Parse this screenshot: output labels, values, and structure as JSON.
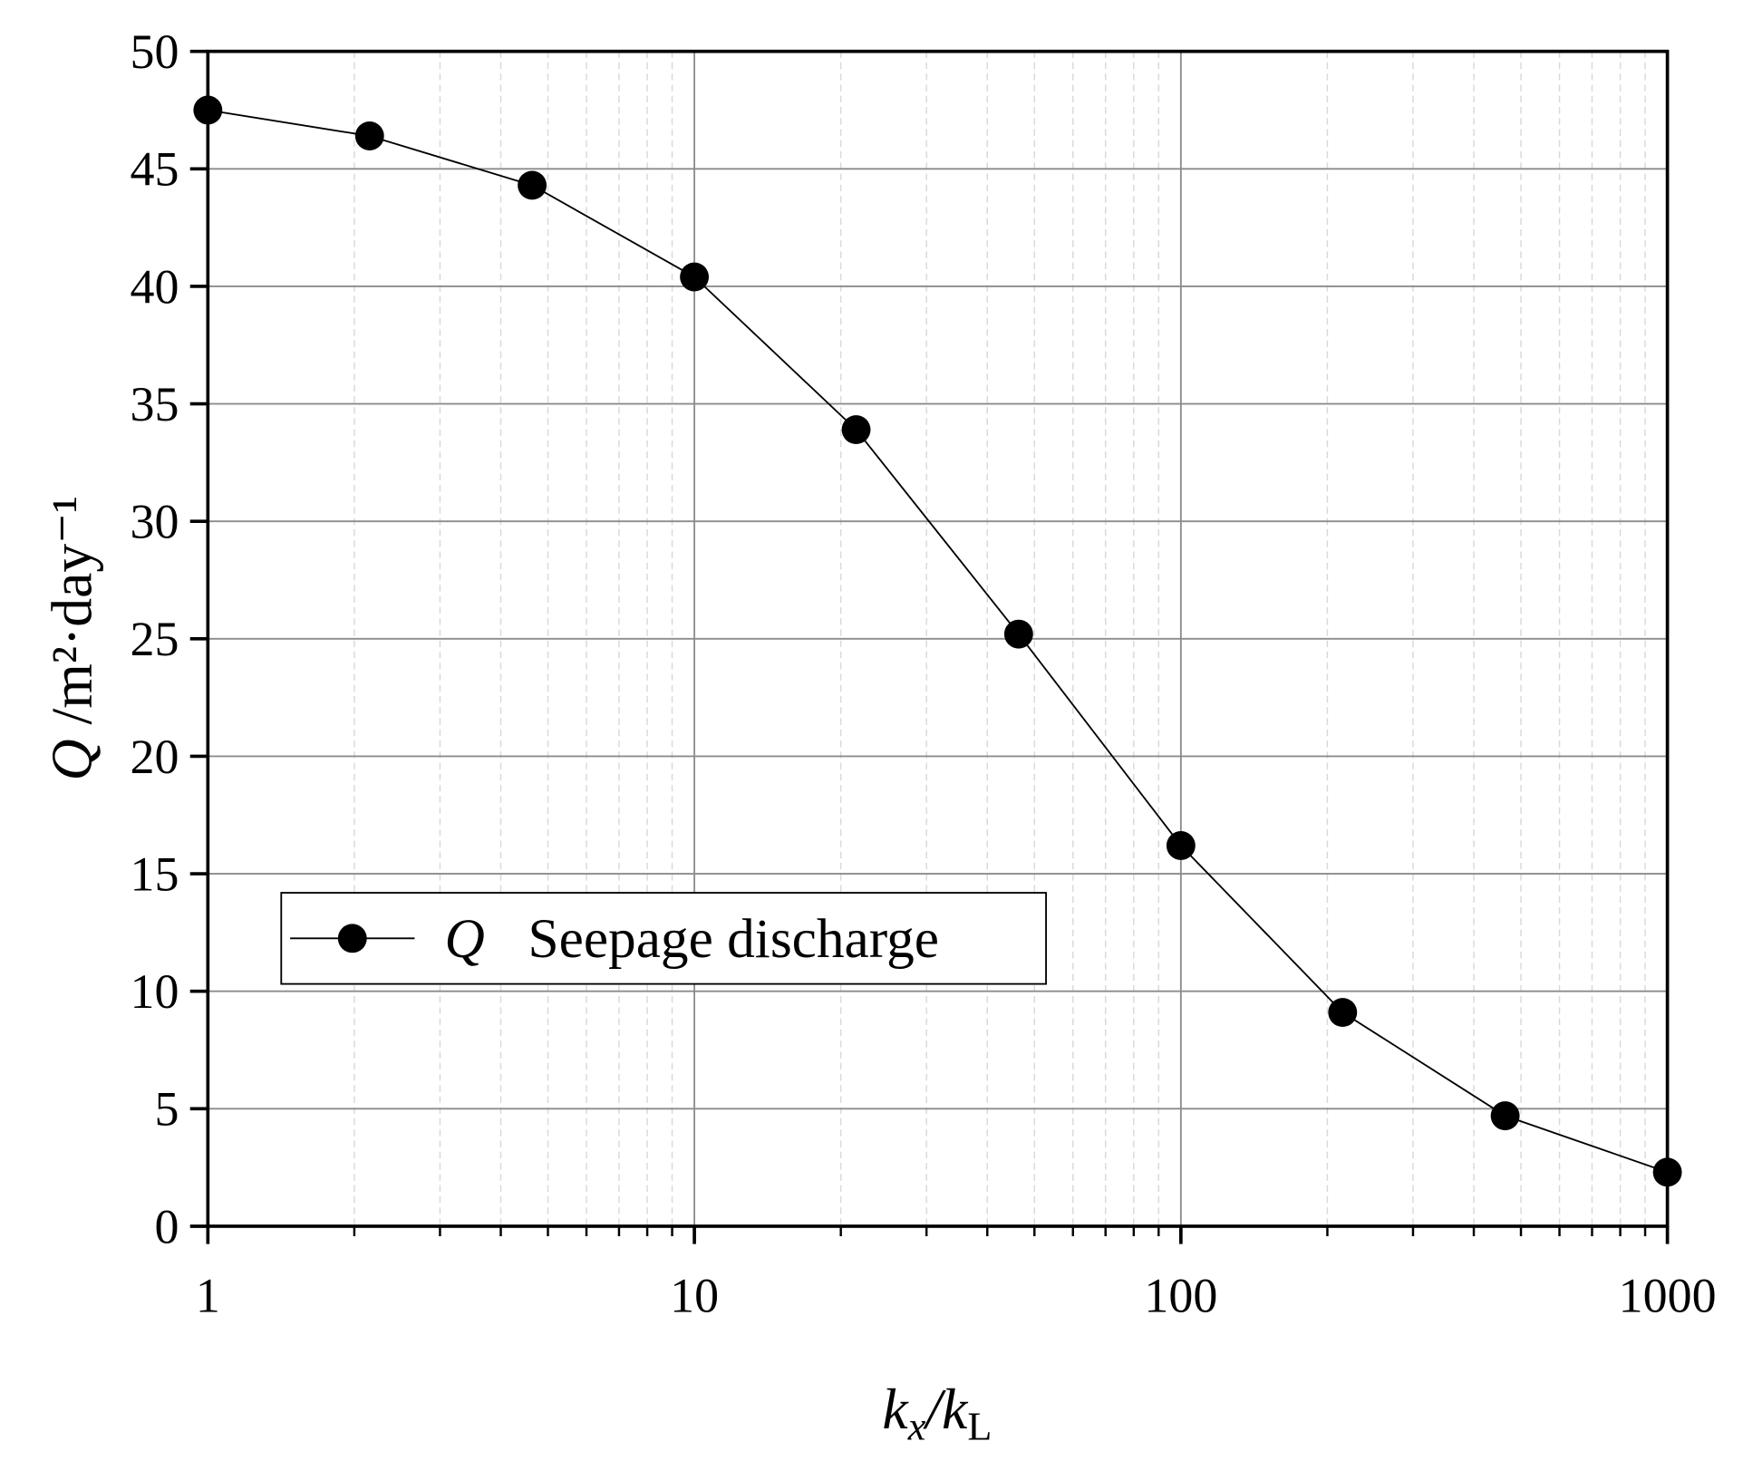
{
  "chart_data": {
    "type": "line",
    "xlabel_parts": [
      "k",
      "x",
      "/k",
      "L"
    ],
    "ylabel_parts": [
      "Q",
      " /m²·day⁻¹"
    ],
    "x": [
      1,
      2.15,
      4.64,
      10,
      21.5,
      46.4,
      100,
      215,
      464,
      1000
    ],
    "series": [
      {
        "symbol": "Q",
        "name": "Seepage discharge",
        "color": "#000000",
        "values": [
          47.5,
          46.4,
          44.3,
          40.4,
          33.9,
          25.2,
          16.2,
          9.1,
          4.7,
          2.3
        ]
      }
    ],
    "xscale": "log",
    "xlim": [
      1,
      1000
    ],
    "xticks": [
      1,
      10,
      100,
      1000
    ],
    "xminorticks": [
      2,
      3,
      4,
      5,
      6,
      7,
      8,
      9,
      20,
      30,
      40,
      50,
      60,
      70,
      80,
      90,
      200,
      300,
      400,
      500,
      600,
      700,
      800,
      900
    ],
    "ylim": [
      0,
      50
    ],
    "yticks": [
      0,
      5,
      10,
      15,
      20,
      25,
      30,
      35,
      40,
      45,
      50
    ],
    "grid": true,
    "legend": "lower left"
  }
}
